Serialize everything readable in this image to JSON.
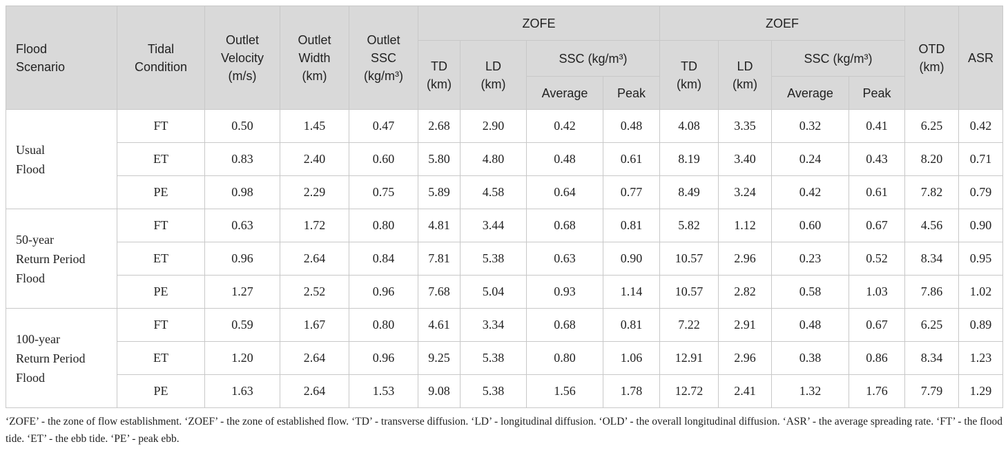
{
  "table": {
    "head": {
      "flood_scenario": [
        "Flood",
        "Scenario"
      ],
      "tidal_condition": [
        "Tidal",
        "Condition"
      ],
      "outlet_velocity": [
        "Outlet",
        "Velocity",
        "(m/s)"
      ],
      "outlet_width": [
        "Outlet",
        "Width",
        "(km)"
      ],
      "outlet_ssc": [
        "Outlet",
        "SSC",
        "(kg/m³)"
      ],
      "groups": [
        {
          "name": "ZOFE",
          "td": [
            "TD",
            "(km)"
          ],
          "ld": [
            "LD",
            "(km)"
          ],
          "ssc": "SSC (kg/m³)",
          "average": "Average",
          "peak": "Peak"
        },
        {
          "name": "ZOEF",
          "td": [
            "TD",
            "(km)"
          ],
          "ld": [
            "LD",
            "(km)"
          ],
          "ssc": "SSC (kg/m³)",
          "average": "Average",
          "peak": "Peak"
        }
      ],
      "otd": [
        "OTD",
        "(km)"
      ],
      "asr": [
        "ASR"
      ]
    },
    "scenarios": [
      {
        "name": [
          "Usual",
          "Flood"
        ],
        "rows": [
          [
            "FT",
            "0.50",
            "1.45",
            "0.47",
            "2.68",
            "2.90",
            "0.42",
            "0.48",
            "4.08",
            "3.35",
            "0.32",
            "0.41",
            "6.25",
            "0.42"
          ],
          [
            "ET",
            "0.83",
            "2.40",
            "0.60",
            "5.80",
            "4.80",
            "0.48",
            "0.61",
            "8.19",
            "3.40",
            "0.24",
            "0.43",
            "8.20",
            "0.71"
          ],
          [
            "PE",
            "0.98",
            "2.29",
            "0.75",
            "5.89",
            "4.58",
            "0.64",
            "0.77",
            "8.49",
            "3.24",
            "0.42",
            "0.61",
            "7.82",
            "0.79"
          ]
        ]
      },
      {
        "name": [
          "50-year",
          "Return Period",
          "Flood"
        ],
        "rows": [
          [
            "FT",
            "0.63",
            "1.72",
            "0.80",
            "4.81",
            "3.44",
            "0.68",
            "0.81",
            "5.82",
            "1.12",
            "0.60",
            "0.67",
            "4.56",
            "0.90"
          ],
          [
            "ET",
            "0.96",
            "2.64",
            "0.84",
            "7.81",
            "5.38",
            "0.63",
            "0.90",
            "10.57",
            "2.96",
            "0.23",
            "0.52",
            "8.34",
            "0.95"
          ],
          [
            "PE",
            "1.27",
            "2.52",
            "0.96",
            "7.68",
            "5.04",
            "0.93",
            "1.14",
            "10.57",
            "2.82",
            "0.58",
            "1.03",
            "7.86",
            "1.02"
          ]
        ]
      },
      {
        "name": [
          "100-year",
          "Return Period",
          "Flood"
        ],
        "rows": [
          [
            "FT",
            "0.59",
            "1.67",
            "0.80",
            "4.61",
            "3.34",
            "0.68",
            "0.81",
            "7.22",
            "2.91",
            "0.48",
            "0.67",
            "6.25",
            "0.89"
          ],
          [
            "ET",
            "1.20",
            "2.64",
            "0.96",
            "9.25",
            "5.38",
            "0.80",
            "1.06",
            "12.91",
            "2.96",
            "0.38",
            "0.86",
            "8.34",
            "1.23"
          ],
          [
            "PE",
            "1.63",
            "2.64",
            "1.53",
            "9.08",
            "5.38",
            "1.56",
            "1.78",
            "12.72",
            "2.41",
            "1.32",
            "1.76",
            "7.79",
            "1.29"
          ]
        ]
      }
    ]
  },
  "footnote": "‘ZOFE’ - the zone of flow establishment. ‘ZOEF’ - the zone of established flow. ‘TD’ - transverse diffusion. ‘LD’ - longitudinal diffusion. ‘OLD’ - the overall longitudinal diffusion. ‘ASR’ - the average spreading rate. ‘FT’ - the flood tide. ‘ET’ - the ebb tide. ‘PE’ - peak ebb."
}
